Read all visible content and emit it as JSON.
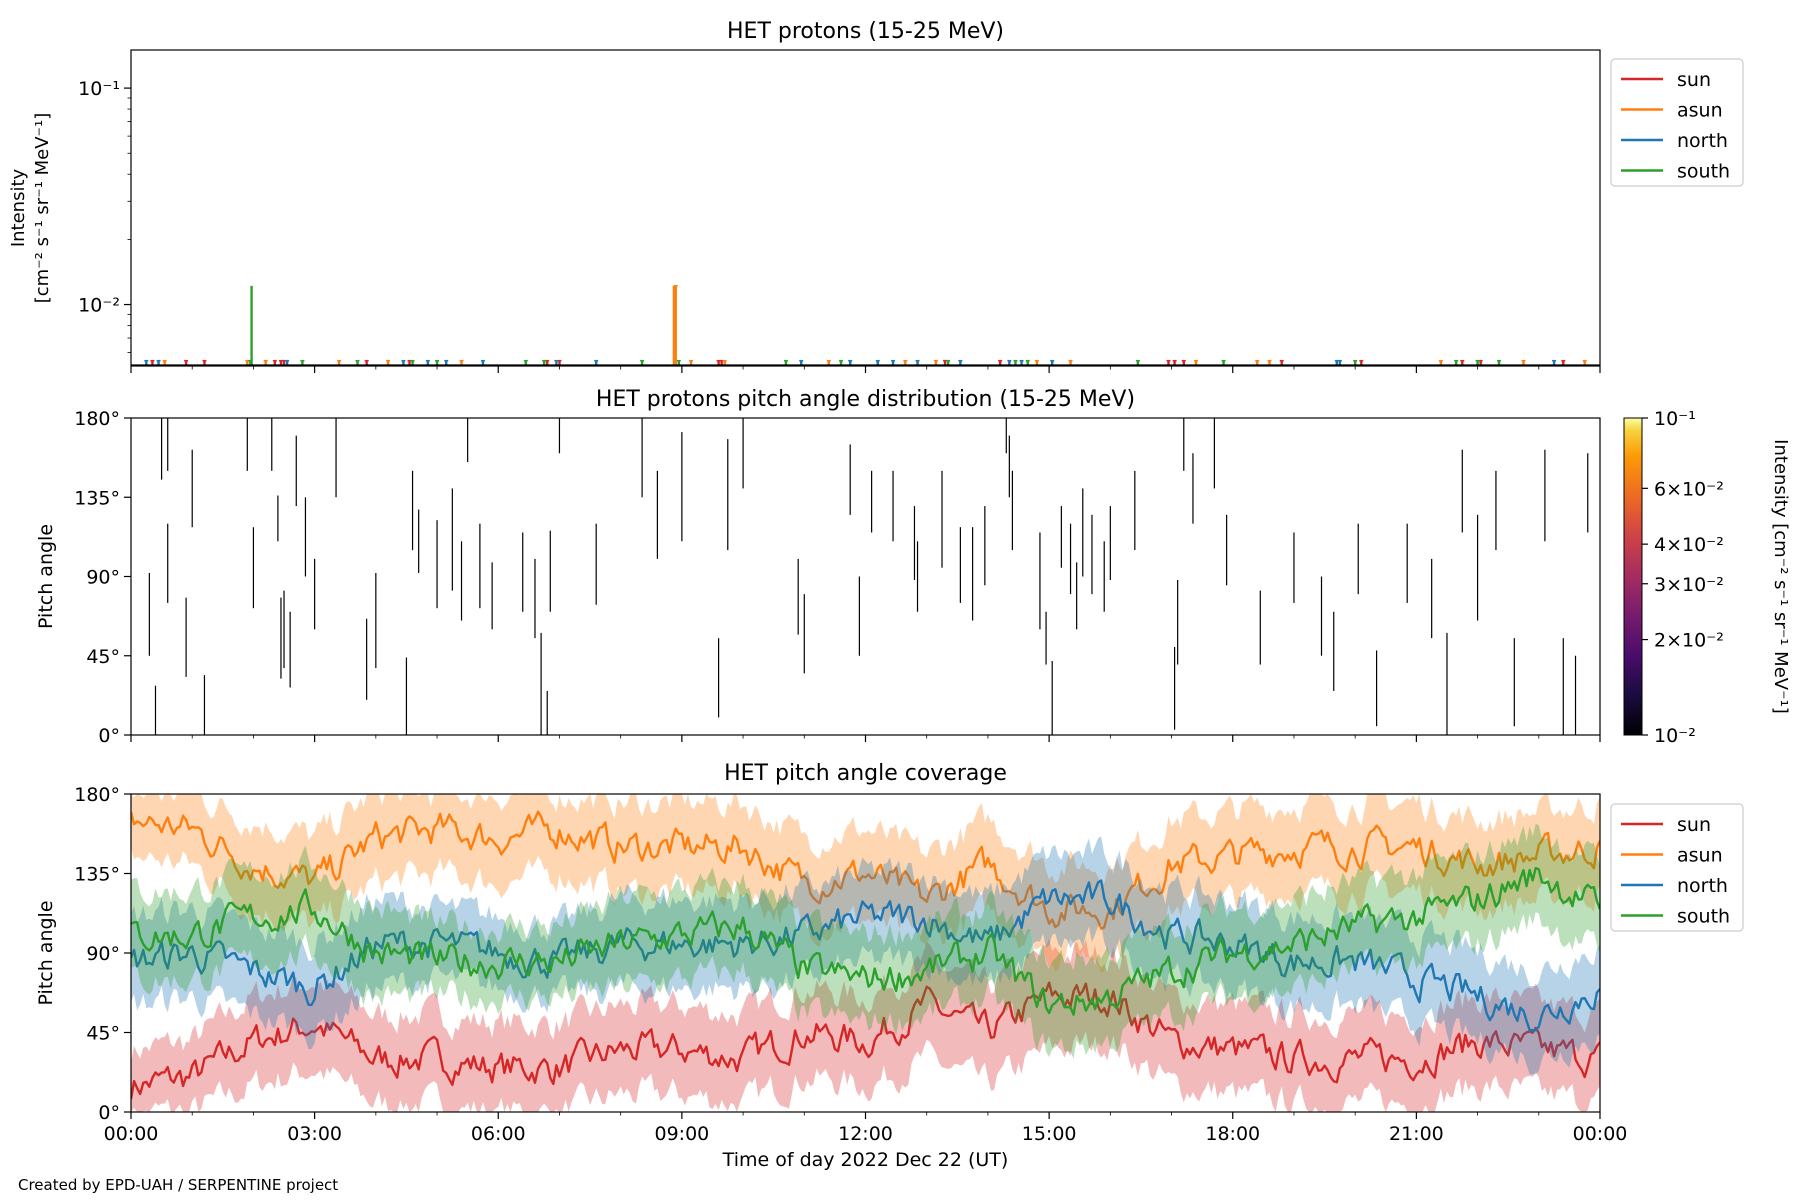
{
  "footer": "Created by EPD-UAH / SERPENTINE project",
  "time_axis": {
    "xlabel": "Time of day 2022 Dec 22 (UT)",
    "ticks": [
      "00:00",
      "03:00",
      "06:00",
      "09:00",
      "12:00",
      "15:00",
      "18:00",
      "21:00",
      "00:00"
    ],
    "xlim_hours": [
      0,
      24
    ]
  },
  "colors": {
    "sun": "#d62728",
    "asun": "#ff7f0e",
    "north": "#1f77b4",
    "south": "#2ca02c"
  },
  "legend": [
    "sun",
    "asun",
    "north",
    "south"
  ],
  "colorbar": {
    "label": "Intensity [cm⁻² s⁻¹ sr⁻¹ MeV⁻¹]",
    "ticks": [
      "10⁻¹",
      "6×10⁻²",
      "4×10⁻²",
      "3×10⁻²",
      "2×10⁻²",
      "10⁻²"
    ],
    "tick_values": [
      0.1,
      0.06,
      0.04,
      0.03,
      0.02,
      0.01
    ],
    "range": [
      0.01,
      0.1
    ],
    "colormap": "inferno"
  },
  "chart_data": [
    {
      "type": "line",
      "title": "HET protons (15-25 MeV)",
      "ylabel_line1": "Intensity",
      "ylabel_line2": "[cm⁻² s⁻¹ sr⁻¹ MeV⁻¹]",
      "yscale": "log",
      "ylim": [
        0.0052,
        0.15
      ],
      "yticks": [
        "10⁻¹",
        "10⁻²"
      ],
      "ytick_values": [
        0.1,
        0.01
      ],
      "legend_position": "outside-right",
      "baseline": 0.0054,
      "series": [
        {
          "name": "sun",
          "x": [
            0.35,
            0.9,
            1.2,
            2.35,
            2.45,
            2.5,
            3.85,
            4.55,
            6.8,
            7.0,
            9.6,
            9.65,
            13.3,
            14.2,
            16.95,
            17.05,
            17.2,
            18.8,
            20.1,
            21.75,
            22.05,
            23.4
          ],
          "y": [
            0.0055,
            0.0055,
            0.0055,
            0.0055,
            0.0055,
            0.0055,
            0.0055,
            0.0055,
            0.0055,
            0.0055,
            0.0055,
            0.0055,
            0.0055,
            0.0055,
            0.0055,
            0.0055,
            0.0055,
            0.0055,
            0.0055,
            0.0055,
            0.0055,
            0.0055
          ]
        },
        {
          "name": "asun",
          "x": [
            0.55,
            1.9,
            2.2,
            3.4,
            4.2,
            5.4,
            8.9,
            9.15,
            9.7,
            11.4,
            12.65,
            13.15,
            14.8,
            15.35,
            17.4,
            18.4,
            18.6,
            21.4,
            22.75,
            23.75
          ],
          "y": [
            0.0055,
            0.0055,
            0.0055,
            0.0055,
            0.0055,
            0.0055,
            0.0122,
            0.0055,
            0.0055,
            0.0055,
            0.0055,
            0.0055,
            0.0055,
            0.0055,
            0.0055,
            0.0055,
            0.0055,
            0.0055,
            0.0055,
            0.0055
          ]
        },
        {
          "name": "north",
          "x": [
            0.25,
            0.45,
            2.55,
            4.45,
            4.85,
            5.15,
            5.75,
            6.95,
            7.6,
            10.95,
            11.75,
            12.2,
            12.45,
            12.85,
            13.55,
            14.35,
            14.55,
            15.05,
            19.7,
            19.75,
            23.25
          ],
          "y": [
            0.0055,
            0.0055,
            0.0055,
            0.0055,
            0.0055,
            0.0055,
            0.0055,
            0.0055,
            0.0055,
            0.0055,
            0.0055,
            0.0055,
            0.0055,
            0.0055,
            0.0055,
            0.0055,
            0.0055,
            0.0055,
            0.0055,
            0.0055,
            0.0055
          ]
        },
        {
          "name": "south",
          "x": [
            1.95,
            2.8,
            3.7,
            4.6,
            5.0,
            6.45,
            6.75,
            8.35,
            8.95,
            10.7,
            11.6,
            13.35,
            14.45,
            14.65,
            16.45,
            17.85,
            20.0,
            21.65,
            22.0,
            22.35
          ],
          "y": [
            0.0055,
            0.0055,
            0.0055,
            0.0055,
            0.0055,
            0.0055,
            0.0055,
            0.0055,
            0.0055,
            0.0055,
            0.0055,
            0.0055,
            0.0055,
            0.0055,
            0.0055,
            0.0055,
            0.0055,
            0.0055,
            0.0055,
            0.0055
          ]
        }
      ],
      "spikes": [
        {
          "series": "south",
          "x": 1.97,
          "y": 0.0122
        },
        {
          "series": "asun",
          "x": 8.87,
          "y": 0.0122
        }
      ]
    },
    {
      "type": "scatter",
      "title": "HET protons pitch angle distribution (15-25 MeV)",
      "ylabel": "Pitch angle",
      "ylim": [
        0,
        180
      ],
      "yticks": [
        "0°",
        "45°",
        "90°",
        "135°",
        "180°"
      ],
      "ytick_values": [
        0,
        45,
        90,
        135,
        180
      ],
      "segments": [
        [
          0.3,
          45,
          92
        ],
        [
          0.4,
          0,
          28
        ],
        [
          0.5,
          145,
          180
        ],
        [
          0.6,
          150,
          180
        ],
        [
          0.6,
          75,
          120
        ],
        [
          0.9,
          33,
          78
        ],
        [
          1.0,
          118,
          162
        ],
        [
          1.2,
          0,
          34
        ],
        [
          1.9,
          150,
          180
        ],
        [
          2.0,
          72,
          118
        ],
        [
          2.3,
          150,
          180
        ],
        [
          2.4,
          110,
          136
        ],
        [
          2.45,
          32,
          78
        ],
        [
          2.5,
          38,
          82
        ],
        [
          2.6,
          27,
          70
        ],
        [
          2.7,
          130,
          170
        ],
        [
          2.85,
          90,
          135
        ],
        [
          3.0,
          60,
          100
        ],
        [
          3.35,
          135,
          180
        ],
        [
          3.85,
          20,
          66
        ],
        [
          4.0,
          38,
          92
        ],
        [
          4.5,
          0,
          44
        ],
        [
          4.6,
          105,
          150
        ],
        [
          4.7,
          92,
          128
        ],
        [
          5.0,
          72,
          122
        ],
        [
          5.25,
          82,
          140
        ],
        [
          5.4,
          65,
          110
        ],
        [
          5.5,
          155,
          180
        ],
        [
          5.7,
          72,
          120
        ],
        [
          5.9,
          60,
          98
        ],
        [
          6.4,
          70,
          115
        ],
        [
          6.6,
          55,
          100
        ],
        [
          6.7,
          0,
          58
        ],
        [
          6.8,
          0,
          25
        ],
        [
          6.85,
          70,
          116
        ],
        [
          7.0,
          160,
          180
        ],
        [
          7.6,
          74,
          120
        ],
        [
          8.35,
          135,
          180
        ],
        [
          8.6,
          100,
          150
        ],
        [
          9.0,
          110,
          172
        ],
        [
          9.6,
          10,
          55
        ],
        [
          9.75,
          105,
          168
        ],
        [
          10.0,
          140,
          180
        ],
        [
          10.9,
          57,
          100
        ],
        [
          11.0,
          35,
          80
        ],
        [
          11.75,
          125,
          165
        ],
        [
          11.9,
          45,
          90
        ],
        [
          12.1,
          115,
          150
        ],
        [
          12.45,
          110,
          150
        ],
        [
          12.8,
          88,
          130
        ],
        [
          12.85,
          70,
          110
        ],
        [
          13.25,
          95,
          150
        ],
        [
          13.55,
          75,
          118
        ],
        [
          13.75,
          65,
          118
        ],
        [
          13.95,
          85,
          130
        ],
        [
          14.3,
          160,
          180
        ],
        [
          14.35,
          135,
          170
        ],
        [
          14.4,
          105,
          150
        ],
        [
          14.85,
          60,
          115
        ],
        [
          14.95,
          40,
          70
        ],
        [
          15.05,
          0,
          42
        ],
        [
          15.2,
          95,
          130
        ],
        [
          15.35,
          80,
          120
        ],
        [
          15.45,
          60,
          98
        ],
        [
          15.55,
          90,
          140
        ],
        [
          15.7,
          80,
          125
        ],
        [
          15.9,
          70,
          110
        ],
        [
          16.0,
          88,
          130
        ],
        [
          16.4,
          105,
          150
        ],
        [
          17.05,
          3,
          50
        ],
        [
          17.1,
          40,
          88
        ],
        [
          17.2,
          150,
          180
        ],
        [
          17.35,
          120,
          160
        ],
        [
          17.7,
          140,
          180
        ],
        [
          17.9,
          85,
          125
        ],
        [
          18.45,
          40,
          82
        ],
        [
          19.0,
          75,
          115
        ],
        [
          19.45,
          45,
          90
        ],
        [
          19.65,
          25,
          70
        ],
        [
          20.05,
          80,
          120
        ],
        [
          20.35,
          5,
          48
        ],
        [
          20.85,
          75,
          120
        ],
        [
          21.25,
          55,
          100
        ],
        [
          21.5,
          0,
          58
        ],
        [
          21.75,
          115,
          162
        ],
        [
          22.0,
          65,
          125
        ],
        [
          22.3,
          105,
          150
        ],
        [
          22.6,
          5,
          55
        ],
        [
          23.1,
          110,
          162
        ],
        [
          23.4,
          0,
          55
        ],
        [
          23.6,
          0,
          45
        ],
        [
          23.8,
          115,
          160
        ]
      ]
    },
    {
      "type": "area",
      "title": "HET pitch angle coverage",
      "ylabel": "Pitch angle",
      "ylim": [
        0,
        180
      ],
      "yticks": [
        "0°",
        "45°",
        "90°",
        "135°",
        "180°"
      ],
      "ytick_values": [
        0,
        45,
        90,
        135,
        180
      ],
      "legend_position": "outside-right",
      "series": [
        {
          "name": "sun",
          "x": [
            0,
            1,
            2,
            3,
            4,
            5,
            6,
            7,
            8,
            9,
            10,
            11,
            12,
            13,
            14,
            15,
            16,
            17,
            18,
            19,
            20,
            21,
            22,
            23,
            24
          ],
          "values": [
            15,
            20,
            40,
            50,
            30,
            30,
            25,
            25,
            35,
            35,
            30,
            45,
            40,
            60,
            45,
            65,
            65,
            40,
            35,
            30,
            30,
            30,
            40,
            35,
            30
          ],
          "lower": [
            0,
            0,
            15,
            25,
            5,
            5,
            0,
            0,
            10,
            10,
            5,
            20,
            15,
            30,
            15,
            35,
            40,
            15,
            10,
            5,
            5,
            5,
            15,
            10,
            5
          ],
          "upper": [
            35,
            40,
            65,
            75,
            55,
            55,
            50,
            50,
            60,
            60,
            55,
            70,
            65,
            85,
            70,
            90,
            90,
            65,
            60,
            55,
            55,
            55,
            65,
            60,
            55
          ]
        },
        {
          "name": "asun",
          "x": [
            0,
            1,
            2,
            3,
            4,
            5,
            6,
            7,
            8,
            9,
            10,
            11,
            12,
            13,
            14,
            15,
            16,
            17,
            18,
            19,
            20,
            21,
            22,
            23,
            24
          ],
          "values": [
            165,
            160,
            140,
            130,
            155,
            160,
            155,
            160,
            150,
            150,
            150,
            130,
            135,
            120,
            140,
            115,
            115,
            140,
            145,
            150,
            150,
            150,
            140,
            145,
            150
          ],
          "lower": [
            145,
            140,
            115,
            105,
            130,
            135,
            130,
            135,
            125,
            125,
            125,
            105,
            110,
            95,
            115,
            90,
            90,
            115,
            120,
            125,
            125,
            125,
            115,
            120,
            125
          ],
          "upper": [
            180,
            180,
            165,
            155,
            180,
            180,
            180,
            180,
            175,
            175,
            175,
            155,
            160,
            145,
            165,
            140,
            140,
            165,
            170,
            175,
            175,
            175,
            165,
            170,
            175
          ]
        },
        {
          "name": "north",
          "x": [
            0,
            1,
            2,
            3,
            4,
            5,
            6,
            7,
            8,
            9,
            10,
            11,
            12,
            13,
            14,
            15,
            16,
            17,
            18,
            19,
            20,
            21,
            22,
            23,
            24
          ],
          "values": [
            85,
            90,
            80,
            70,
            95,
            95,
            90,
            85,
            95,
            95,
            95,
            100,
            110,
            110,
            95,
            120,
            120,
            100,
            95,
            85,
            85,
            75,
            65,
            55,
            70
          ],
          "lower": [
            60,
            65,
            55,
            45,
            70,
            75,
            70,
            65,
            70,
            70,
            70,
            75,
            85,
            85,
            70,
            95,
            95,
            75,
            70,
            60,
            60,
            50,
            40,
            30,
            45
          ],
          "upper": [
            110,
            115,
            105,
            95,
            120,
            115,
            110,
            105,
            120,
            120,
            120,
            125,
            135,
            135,
            120,
            145,
            145,
            125,
            120,
            110,
            110,
            100,
            90,
            80,
            95
          ]
        },
        {
          "name": "south",
          "x": [
            0,
            1,
            2,
            3,
            4,
            5,
            6,
            7,
            8,
            9,
            10,
            11,
            12,
            13,
            14,
            15,
            16,
            17,
            18,
            19,
            20,
            21,
            22,
            23,
            24
          ],
          "values": [
            100,
            100,
            110,
            115,
            90,
            85,
            85,
            85,
            95,
            100,
            105,
            80,
            75,
            80,
            90,
            60,
            65,
            80,
            90,
            95,
            105,
            110,
            120,
            135,
            115
          ],
          "lower": [
            75,
            75,
            85,
            90,
            65,
            65,
            65,
            65,
            70,
            75,
            80,
            55,
            50,
            55,
            65,
            35,
            40,
            55,
            65,
            70,
            80,
            85,
            95,
            110,
            90
          ],
          "upper": [
            125,
            125,
            135,
            140,
            115,
            105,
            105,
            105,
            120,
            125,
            130,
            105,
            100,
            105,
            115,
            85,
            90,
            105,
            115,
            120,
            130,
            135,
            145,
            160,
            140
          ]
        }
      ]
    }
  ]
}
